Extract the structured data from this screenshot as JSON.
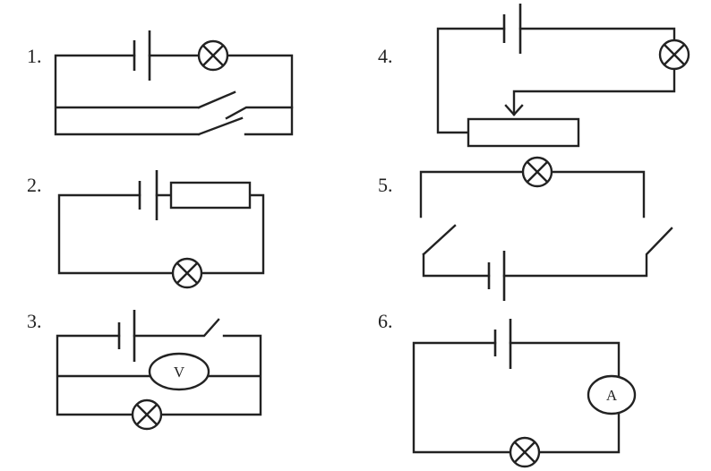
{
  "diagrams": [
    {
      "number": "1."
    },
    {
      "number": "2."
    },
    {
      "number": "3.",
      "meter_label": "V"
    },
    {
      "number": "4."
    },
    {
      "number": "5."
    },
    {
      "number": "6.",
      "meter_label": "A"
    }
  ],
  "icons": {
    "lamp": "lamp-icon",
    "battery": "battery-icon",
    "switch": "switch-icon",
    "resistor": "resistor-icon",
    "rheostat": "rheostat-icon",
    "voltmeter": "voltmeter-icon",
    "ammeter": "ammeter-icon"
  }
}
